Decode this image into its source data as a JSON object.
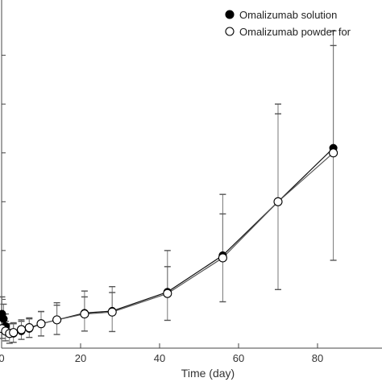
{
  "chart_data": {
    "type": "line",
    "title": "",
    "xlabel": "Time (day)",
    "ylabel": "",
    "xlim": [
      0,
      90
    ],
    "ylim": [
      0,
      7
    ],
    "x_ticks": [
      0,
      20,
      40,
      60,
      80
    ],
    "x_tick_labels": [
      "0",
      "20",
      "40",
      "60",
      "80"
    ],
    "grid": false,
    "legend_position": "top-right",
    "series": [
      {
        "name": "Omalizumab solution",
        "marker": "filled-circle",
        "color": "#000000",
        "points": [
          {
            "x": 0.1,
            "y": 0.7
          },
          {
            "x": 0.5,
            "y": 0.6
          },
          {
            "x": 1,
            "y": 0.45
          },
          {
            "x": 2,
            "y": 0.3
          },
          {
            "x": 3,
            "y": 0.3
          },
          {
            "x": 5,
            "y": 0.35
          },
          {
            "x": 7,
            "y": 0.4
          },
          {
            "x": 10,
            "y": 0.5
          },
          {
            "x": 14,
            "y": 0.58
          },
          {
            "x": 21,
            "y": 0.72
          },
          {
            "x": 28,
            "y": 0.76
          },
          {
            "x": 42,
            "y": 1.15
          },
          {
            "x": 56,
            "y": 1.9
          },
          {
            "x": 70,
            "y": 3.0
          },
          {
            "x": 84,
            "y": 4.1
          }
        ],
        "errors": [
          0.35,
          0.3,
          0.25,
          0.2,
          0.2,
          0.2,
          0.2,
          0.25,
          0.35,
          0.45,
          0.5,
          0.85,
          1.25,
          2.0,
          2.4
        ]
      },
      {
        "name": "Omalizumab powder for",
        "marker": "open-circle",
        "color": "#000000",
        "points": [
          {
            "x": 0.1,
            "y": 0.4
          },
          {
            "x": 1,
            "y": 0.35
          },
          {
            "x": 2,
            "y": 0.3
          },
          {
            "x": 3,
            "y": 0.32
          },
          {
            "x": 5,
            "y": 0.38
          },
          {
            "x": 7,
            "y": 0.42
          },
          {
            "x": 10,
            "y": 0.5
          },
          {
            "x": 14,
            "y": 0.58
          },
          {
            "x": 21,
            "y": 0.7
          },
          {
            "x": 28,
            "y": 0.74
          },
          {
            "x": 42,
            "y": 1.12
          },
          {
            "x": 56,
            "y": 1.85
          },
          {
            "x": 70,
            "y": 3.0
          },
          {
            "x": 84,
            "y": 4.0
          }
        ],
        "errors": [
          0.2,
          0.2,
          0.2,
          0.2,
          0.2,
          0.2,
          0.25,
          0.3,
          0.35,
          0.4,
          0.55,
          0.9,
          1.8,
          2.2
        ]
      }
    ]
  }
}
